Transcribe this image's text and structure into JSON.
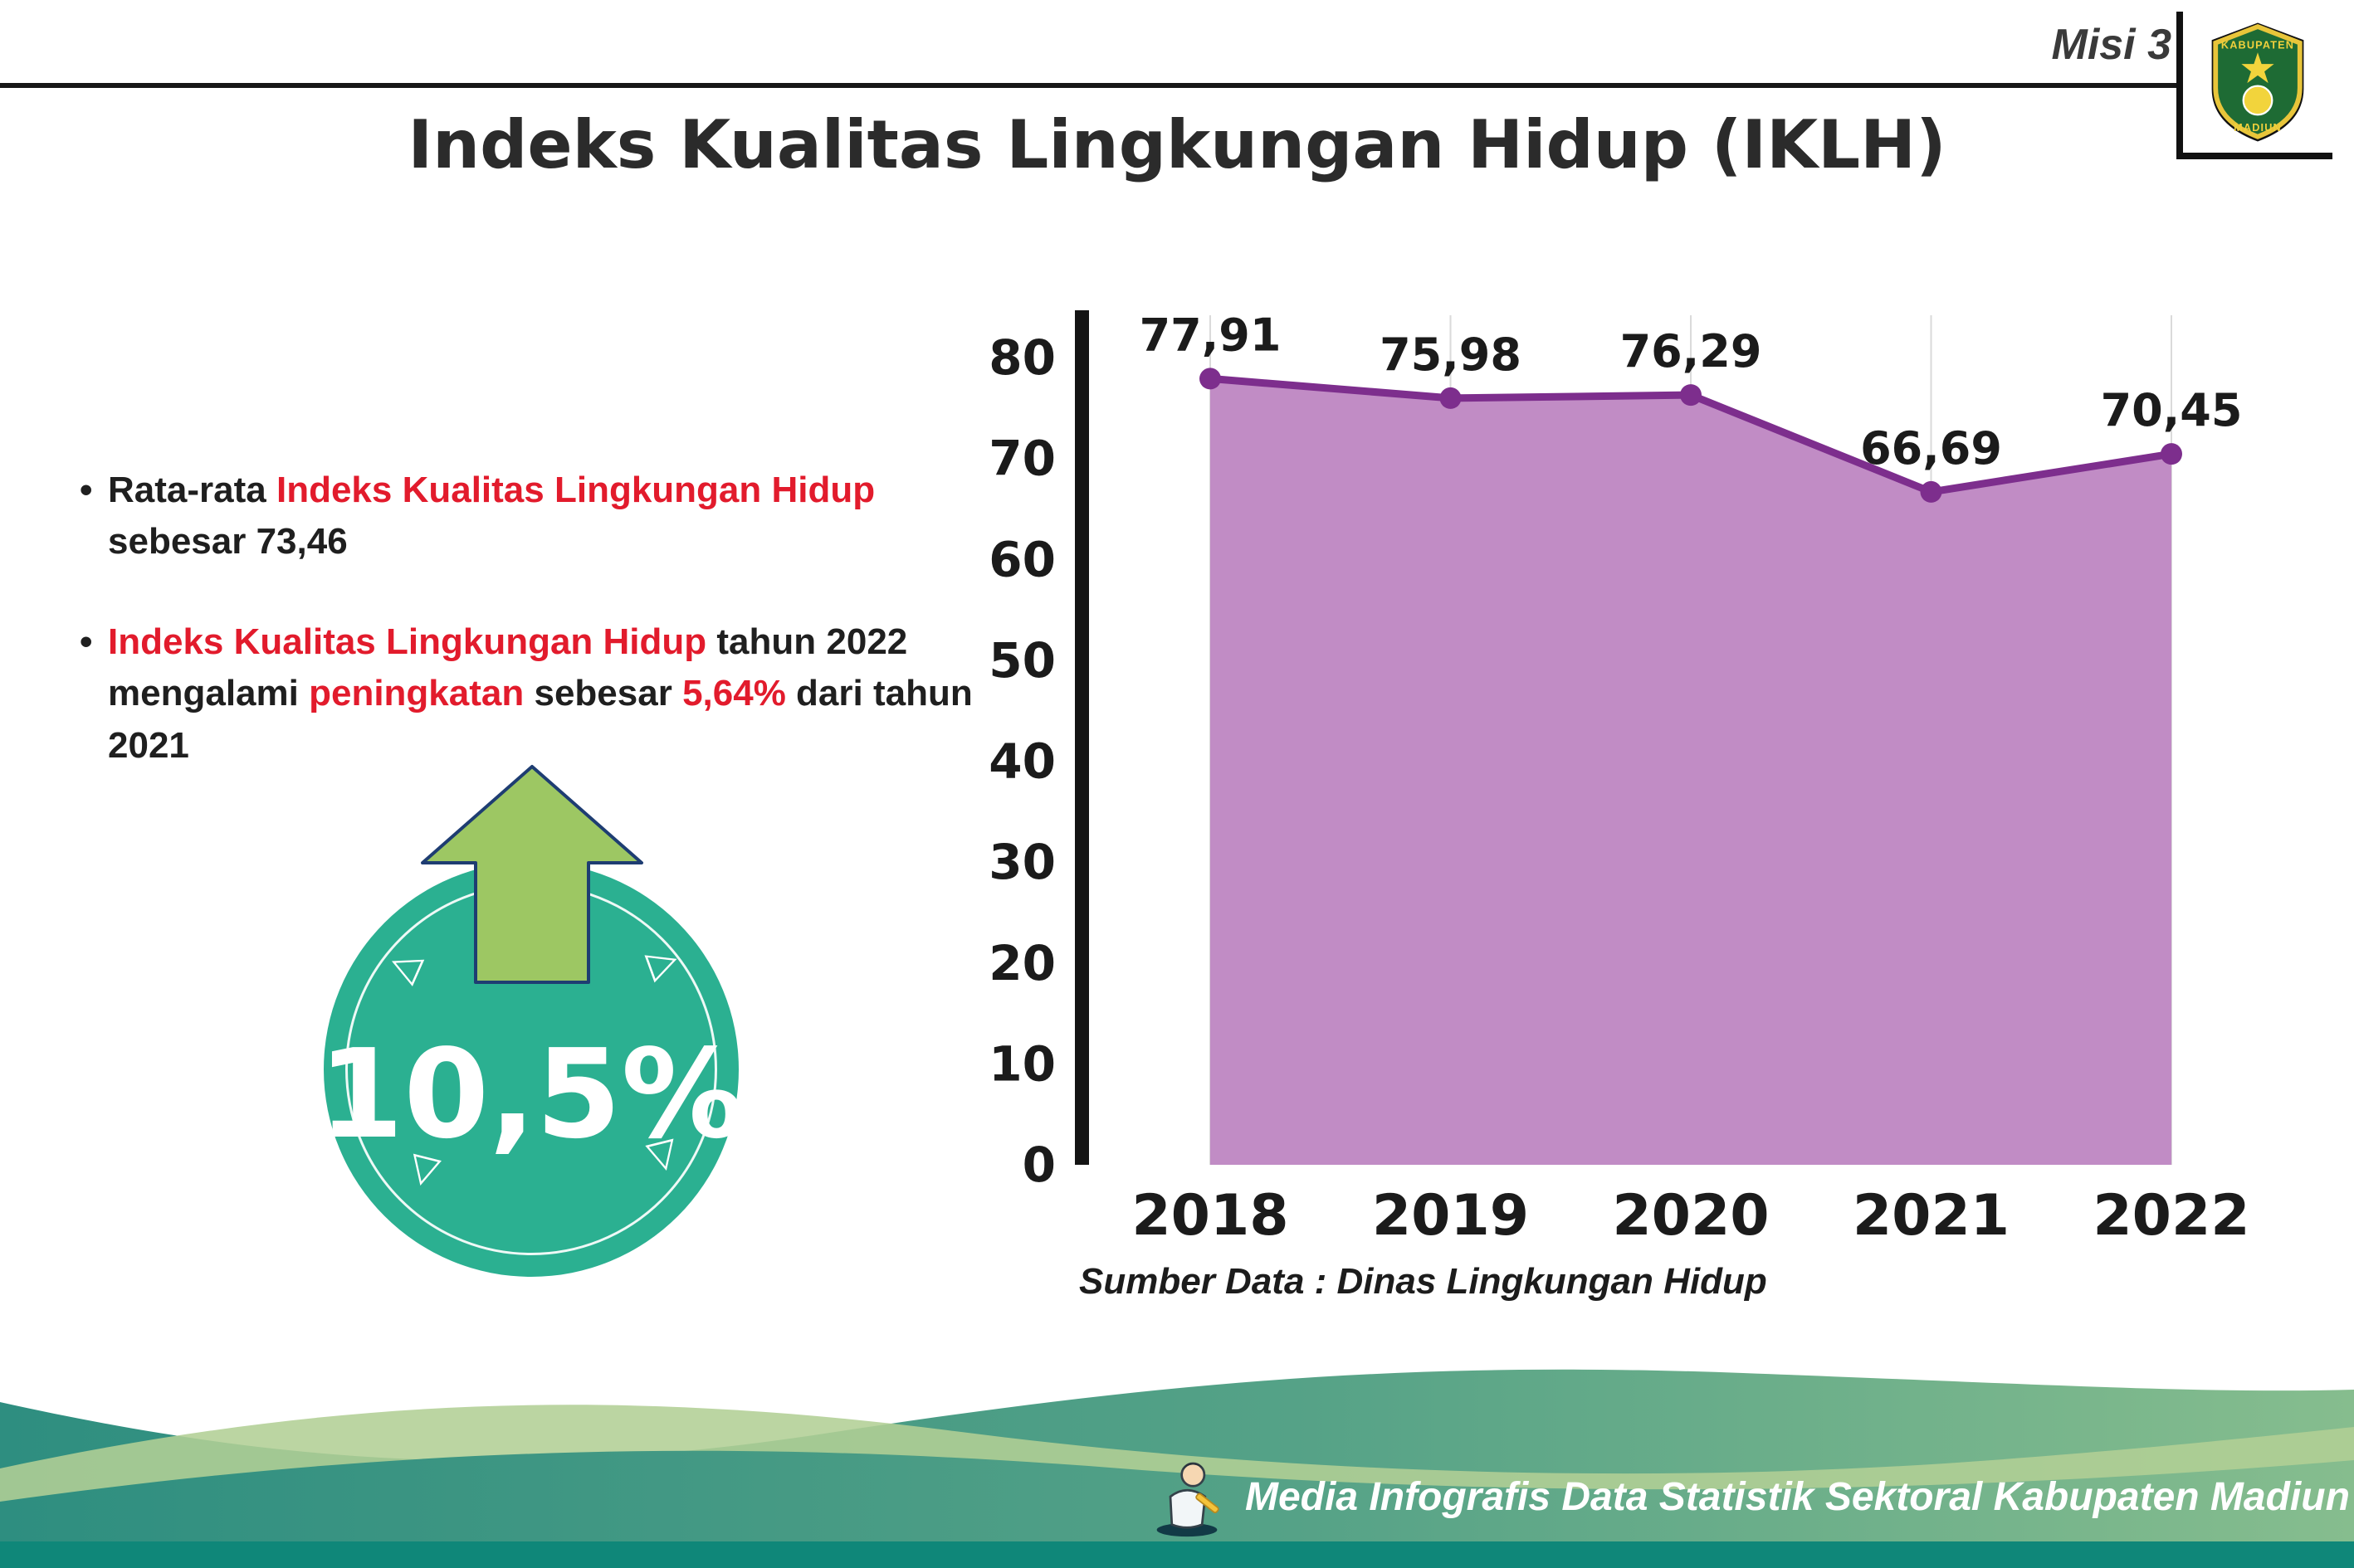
{
  "header": {
    "misi_label": "Misi 3",
    "title": "Indeks Kualitas Lingkungan Hidup (IKLH)"
  },
  "logo": {
    "name": "Kabupaten Madiun",
    "top_text": "KABUPATEN",
    "bottom_text": "MADIUN"
  },
  "bullet_glyph": "•",
  "bullets": [
    {
      "segments": [
        {
          "text": "Rata-rata ",
          "style": "normal"
        },
        {
          "text": "Indeks Kualitas Lingkungan Hidup",
          "style": "red"
        },
        {
          "text": " sebesar 73,46",
          "style": "normal"
        }
      ]
    },
    {
      "segments": [
        {
          "text": "Indeks Kualitas Lingkungan Hidup",
          "style": "red"
        },
        {
          "text": " tahun 2022 mengalami ",
          "style": "normal"
        },
        {
          "text": "peningkatan",
          "style": "red"
        },
        {
          "text": " sebesar ",
          "style": "normal"
        },
        {
          "text": "5,64%",
          "style": "red"
        },
        {
          "text": " dari tahun 2021",
          "style": "normal"
        }
      ]
    }
  ],
  "badge": {
    "percent": "10,5%",
    "ornaments": [
      "◁",
      "▷",
      "▽",
      "▽"
    ]
  },
  "chart_data": {
    "type": "area",
    "title": "",
    "categories": [
      "2018",
      "2019",
      "2020",
      "2021",
      "2022"
    ],
    "values": [
      77.91,
      75.98,
      76.29,
      66.69,
      70.45
    ],
    "value_labels": [
      "77,91",
      "75,98",
      "76,29",
      "66,69",
      "70,45"
    ],
    "xlabel": "",
    "ylabel": "",
    "ylim": [
      0,
      80
    ],
    "yticks": [
      0,
      10,
      20,
      30,
      40,
      50,
      60,
      70,
      80
    ],
    "grid": true,
    "legend": "none",
    "fill_color": "#c18cc5",
    "line_color": "#7d2e8d",
    "source": "Sumber Data : Dinas Lingkungan Hidup"
  },
  "footer": {
    "text": "Media Infografis Data Statistik Sektoral Kabupaten Madiun |"
  },
  "colors": {
    "accent_red": "#e21b2c",
    "badge_teal": "#2bb091",
    "arrow_green": "#9dc763",
    "footer_teal": "#2e8e80",
    "footer_green": "#b2cf95",
    "footer_bar": "#0f8779"
  }
}
